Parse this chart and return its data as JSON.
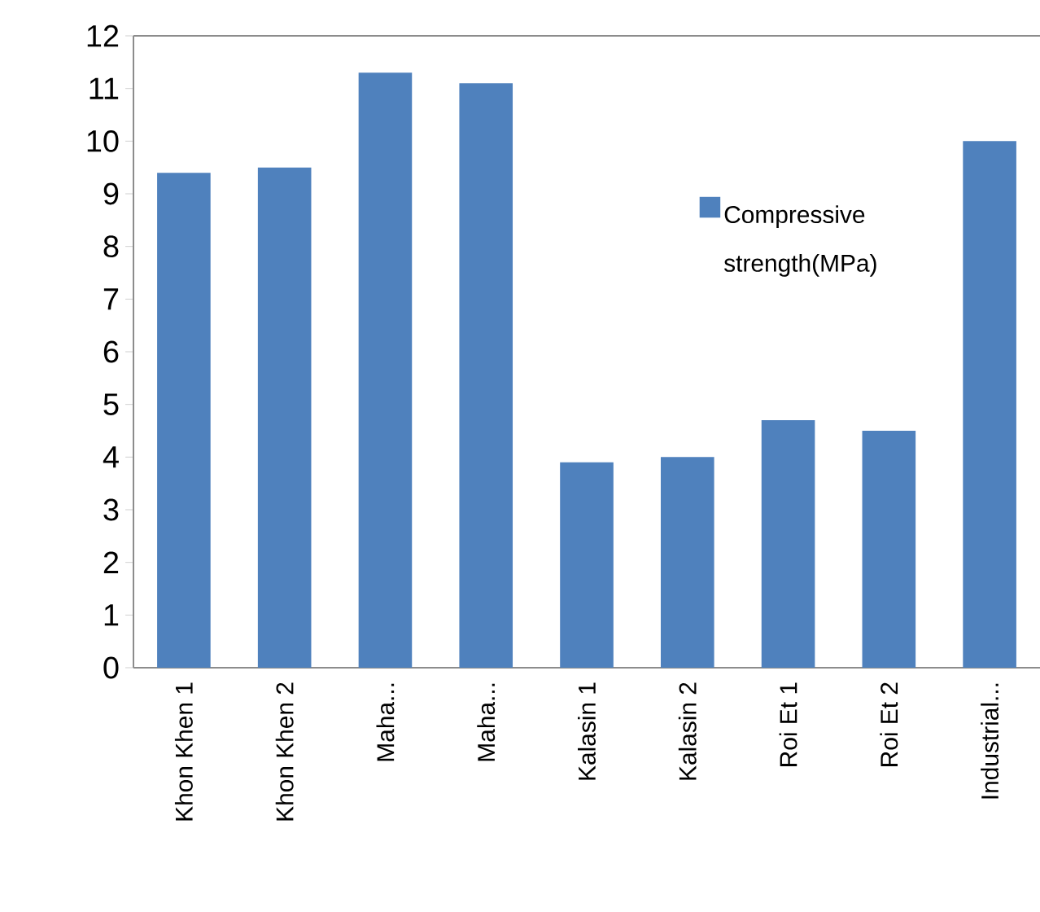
{
  "chart_data": {
    "type": "bar",
    "categories": [
      "Khon Khen 1",
      "Khon Khen 2",
      "Maha...",
      "Maha...",
      "Kalasin 1",
      "Kalasin 2",
      "Roi Et 1",
      "Roi Et 2",
      "Industrial..."
    ],
    "series": [
      {
        "name": "Compressive strength(MPa)",
        "color": "#4f81bd",
        "values": [
          9.4,
          9.5,
          11.3,
          11.1,
          3.9,
          4.0,
          4.7,
          4.5,
          10.0
        ]
      }
    ],
    "ylim": [
      0,
      12
    ],
    "yticks": [
      0,
      1,
      2,
      3,
      4,
      5,
      6,
      7,
      8,
      9,
      10,
      11,
      12
    ],
    "legend": "right"
  }
}
